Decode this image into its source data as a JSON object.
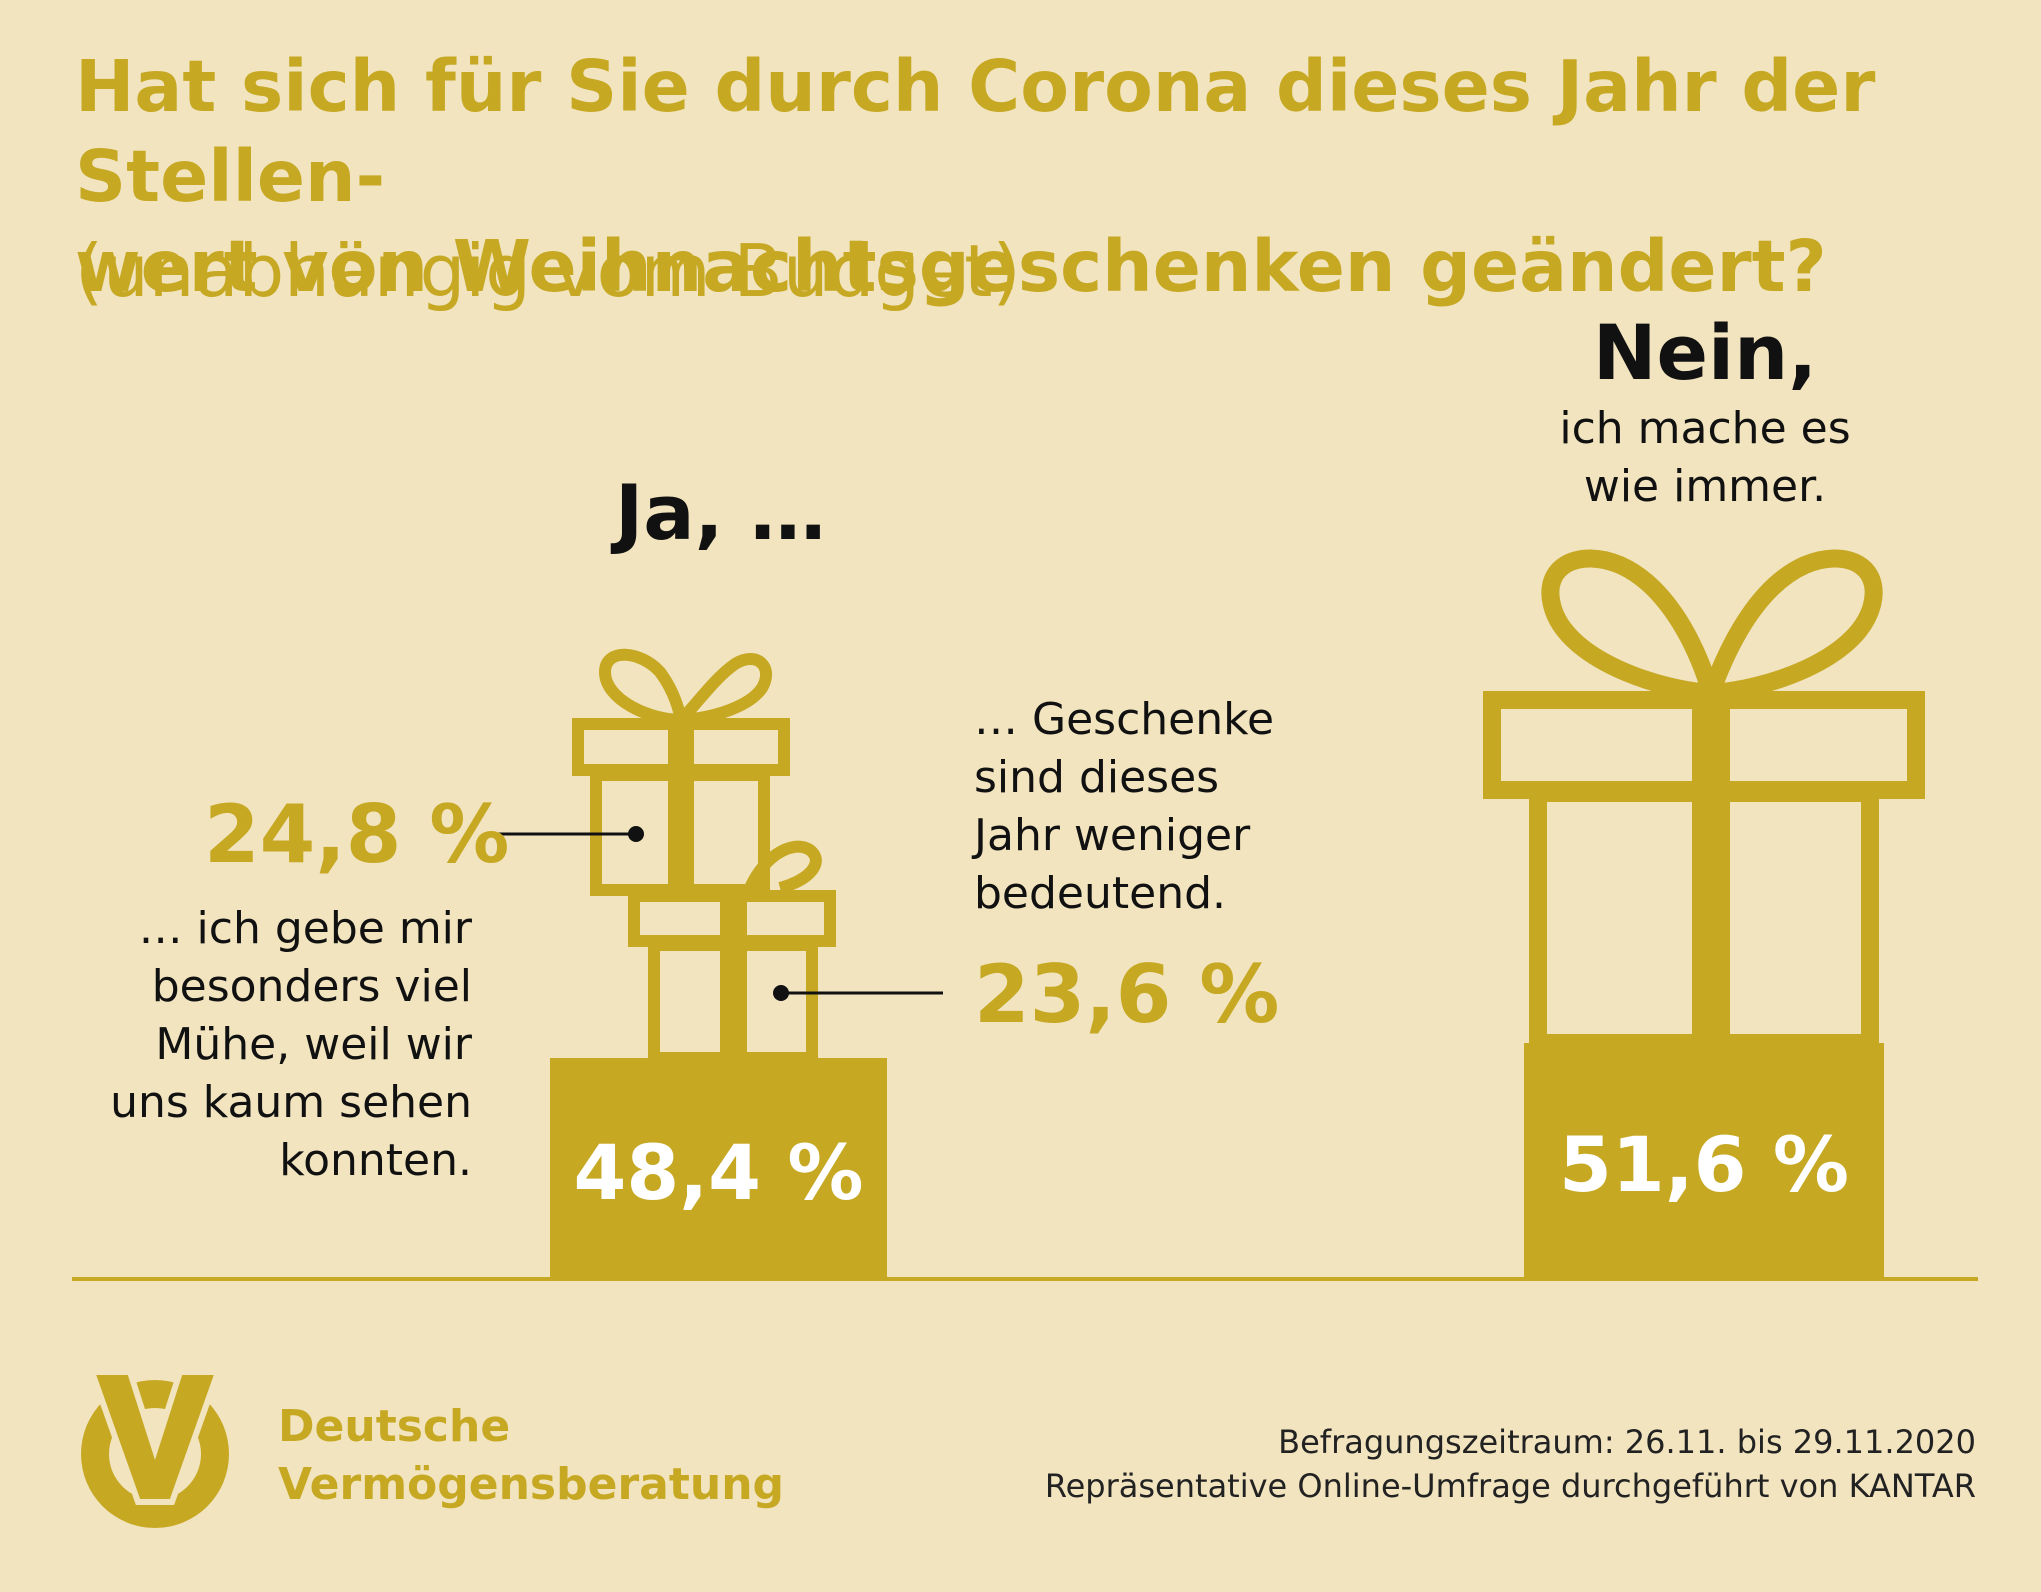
{
  "header": {
    "title_line1": "Hat sich für Sie durch Corona dieses Jahr der Stellen-",
    "title_line2": "wert von Weihnachtsgeschenken geändert?",
    "subtitle": "(unabhängig vom Budget)"
  },
  "answers": {
    "ja_label": "Ja, …",
    "nein_label": "Nein,",
    "nein_sub_line1": "ich mache es",
    "nein_sub_line2": "wie immer."
  },
  "breakdown": {
    "left_pct": "24,8 %",
    "left_note_lines": [
      "… ich gebe mir",
      "besonders viel",
      "Mühe, weil wir",
      "uns kaum sehen",
      "konnten."
    ],
    "right_pct": "23,6 %",
    "right_note_lines": [
      "… Geschenke",
      "sind dieses",
      "Jahr weniger",
      "bedeutend."
    ]
  },
  "totals": {
    "ja_pct": "48,4 %",
    "nein_pct": "51,6 %"
  },
  "footer": {
    "brand_line1": "Deutsche",
    "brand_line2": "Vermögensberatung",
    "period": "Befragungszeitraum: 26.11. bis 29.11.2020",
    "method": "Repräsentative Online-Umfrage durchgeführt von KANTAR"
  },
  "colors": {
    "background": "#f1e4bf",
    "gold": "#c6a823",
    "text": "#111111"
  },
  "chart_data": {
    "type": "bar",
    "categories": [
      "Ja, …",
      "Nein,"
    ],
    "values": [
      48.4,
      51.6
    ],
    "sub_breakdown": [
      {
        "category": "Ja, …",
        "label": "… ich gebe mir besonders viel Mühe, weil wir uns kaum sehen konnten.",
        "value": 24.8
      },
      {
        "category": "Ja, …",
        "label": "… Geschenke sind dieses Jahr weniger bedeutend.",
        "value": 23.6
      }
    ],
    "unit": "%"
  }
}
